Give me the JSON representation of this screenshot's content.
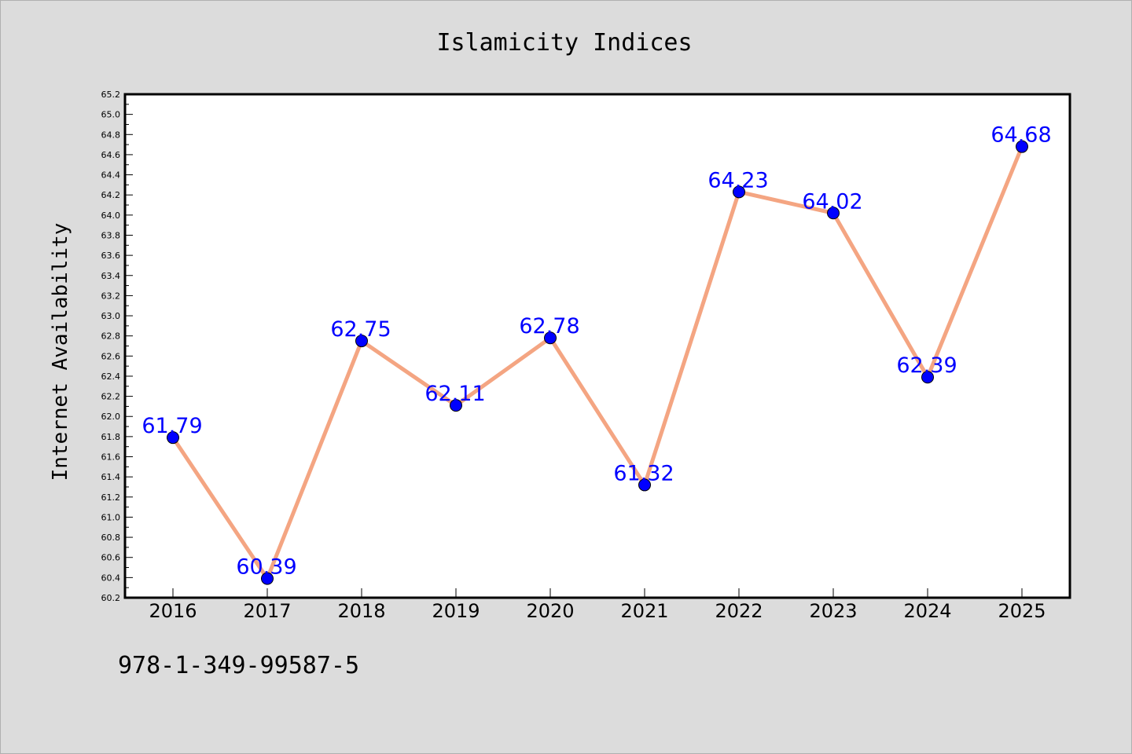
{
  "caption": "978-1-349-99587-5",
  "chart_data": {
    "type": "line",
    "title": "Islamicity Indices",
    "xlabel": "",
    "ylabel": "Internet Availability",
    "categories": [
      "2016",
      "2017",
      "2018",
      "2019",
      "2020",
      "2021",
      "2022",
      "2023",
      "2024",
      "2025"
    ],
    "series": [
      {
        "values": [
          61.79,
          60.39,
          62.75,
          62.11,
          62.78,
          61.32,
          64.23,
          64.02,
          62.39,
          64.68
        ],
        "labels": [
          "61.79",
          "60.39",
          "62.75",
          "62.11",
          "62.78",
          "61.32",
          "64.23",
          "64.02",
          "62.39",
          "64.68"
        ],
        "line_color": "#f4a582",
        "marker_color": "#0000ff",
        "label_color": "#0000ff"
      }
    ],
    "ylim": [
      60.2,
      65.2
    ],
    "yticks": [
      "60.2",
      "60.4",
      "60.6",
      "60.8",
      "61.0",
      "61.2",
      "61.4",
      "61.6",
      "61.8",
      "62.0",
      "62.2",
      "62.4",
      "62.6",
      "62.8",
      "63.0",
      "63.2",
      "63.4",
      "63.6",
      "63.8",
      "64.0",
      "64.2",
      "64.4",
      "64.6",
      "64.8",
      "65.0",
      "65.2"
    ],
    "grid": false,
    "legend": "none",
    "background": "#dcdcdc",
    "plot_background": "#ffffff"
  }
}
